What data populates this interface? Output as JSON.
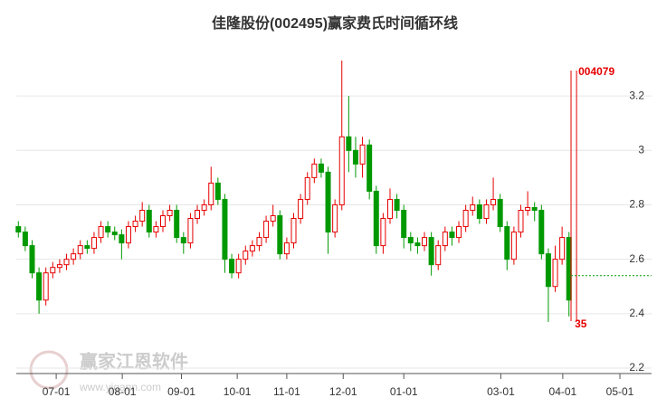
{
  "chart_data": {
    "type": "candlestick",
    "title": "佳隆股份(002495)赢家费氏时间循环线",
    "watermark": "赢家江恩软件",
    "watermark_url": "www.yjgann.com",
    "up_color": "#e60000",
    "down_color": "#009900",
    "xlim": [
      -0.3,
      92
    ],
    "xticks": [
      {
        "value": 5.5,
        "label": "07-01"
      },
      {
        "value": 15.1,
        "label": "08-01"
      },
      {
        "value": 23.7,
        "label": "09-01"
      },
      {
        "value": 31.8,
        "label": "10-01"
      },
      {
        "value": 39,
        "label": "11-01"
      },
      {
        "value": 47.2,
        "label": "12-01"
      },
      {
        "value": 56,
        "label": "01-01"
      },
      {
        "value": 70.1,
        "label": "03-01"
      },
      {
        "value": 79.1,
        "label": "04-01"
      },
      {
        "value": 87.4,
        "label": "05-01"
      }
    ],
    "ylim": [
      2.18,
      3.37
    ],
    "yticks": [
      2.2,
      2.4,
      2.6,
      2.8,
      3,
      3.2
    ],
    "grid": true,
    "series": [
      {
        "open": [
          2.72,
          2.7,
          2.65,
          2.55,
          2.45,
          2.55,
          2.57,
          2.58,
          2.6,
          2.62,
          2.65,
          2.64,
          2.68,
          2.72,
          2.7,
          2.69,
          2.66,
          2.72,
          2.74,
          2.78,
          2.7,
          2.72,
          2.76,
          2.78,
          2.68,
          2.66,
          2.75,
          2.78,
          2.8,
          2.88,
          2.82,
          2.6,
          2.55,
          2.6,
          2.63,
          2.65,
          2.68,
          2.74,
          2.76,
          2.62,
          2.66,
          2.75,
          2.82,
          2.9,
          2.95,
          2.92,
          2.7,
          2.8,
          3.05,
          3.0,
          2.95,
          3.02,
          2.85,
          2.65,
          2.75,
          2.82,
          2.78,
          2.68,
          2.66,
          2.65,
          2.68,
          2.58,
          2.65,
          2.7,
          2.68,
          2.72,
          2.78,
          2.8,
          2.75,
          2.8,
          2.82,
          2.72,
          2.6,
          2.7,
          2.78,
          2.79,
          2.78,
          2.62,
          2.5,
          2.6,
          2.68
        ],
        "high": [
          2.74,
          2.72,
          2.67,
          2.57,
          2.57,
          2.59,
          2.6,
          2.62,
          2.64,
          2.67,
          2.67,
          2.7,
          2.74,
          2.74,
          2.72,
          2.71,
          2.74,
          2.76,
          2.81,
          2.8,
          2.74,
          2.78,
          2.8,
          2.8,
          2.7,
          2.77,
          2.8,
          2.82,
          2.94,
          2.9,
          2.84,
          2.62,
          2.62,
          2.65,
          2.67,
          2.7,
          2.76,
          2.8,
          2.78,
          2.68,
          2.77,
          2.84,
          2.92,
          2.97,
          2.97,
          2.94,
          2.82,
          3.33,
          3.2,
          3.05,
          3.05,
          3.04,
          2.87,
          2.77,
          2.86,
          2.84,
          2.8,
          2.7,
          2.68,
          2.7,
          2.7,
          2.67,
          2.72,
          2.72,
          2.74,
          2.8,
          2.83,
          2.82,
          2.82,
          2.9,
          2.84,
          2.74,
          2.72,
          2.8,
          2.85,
          2.81,
          2.8,
          2.64,
          2.65,
          2.72,
          2.7
        ],
        "low": [
          2.68,
          2.63,
          2.53,
          2.4,
          2.43,
          2.53,
          2.55,
          2.56,
          2.58,
          2.6,
          2.62,
          2.62,
          2.66,
          2.68,
          2.67,
          2.6,
          2.64,
          2.7,
          2.72,
          2.68,
          2.68,
          2.7,
          2.74,
          2.66,
          2.62,
          2.64,
          2.73,
          2.76,
          2.78,
          2.8,
          2.55,
          2.53,
          2.53,
          2.58,
          2.61,
          2.63,
          2.66,
          2.72,
          2.6,
          2.6,
          2.64,
          2.73,
          2.8,
          2.88,
          2.9,
          2.62,
          2.68,
          2.78,
          2.92,
          2.9,
          2.9,
          2.82,
          2.62,
          2.62,
          2.73,
          2.75,
          2.64,
          2.63,
          2.62,
          2.63,
          2.54,
          2.56,
          2.63,
          2.65,
          2.66,
          2.7,
          2.76,
          2.73,
          2.73,
          2.78,
          2.7,
          2.56,
          2.58,
          2.68,
          2.76,
          2.74,
          2.6,
          2.37,
          2.48,
          2.58,
          2.39
        ],
        "close": [
          2.7,
          2.65,
          2.55,
          2.45,
          2.55,
          2.57,
          2.58,
          2.6,
          2.62,
          2.65,
          2.64,
          2.68,
          2.72,
          2.7,
          2.69,
          2.66,
          2.72,
          2.74,
          2.78,
          2.7,
          2.72,
          2.76,
          2.78,
          2.68,
          2.66,
          2.75,
          2.78,
          2.8,
          2.88,
          2.82,
          2.6,
          2.55,
          2.6,
          2.63,
          2.65,
          2.68,
          2.74,
          2.76,
          2.62,
          2.66,
          2.75,
          2.82,
          2.9,
          2.95,
          2.92,
          2.7,
          2.8,
          3.05,
          3.0,
          2.95,
          3.02,
          2.85,
          2.65,
          2.75,
          2.82,
          2.78,
          2.68,
          2.66,
          2.65,
          2.68,
          2.58,
          2.65,
          2.7,
          2.68,
          2.72,
          2.78,
          2.8,
          2.75,
          2.8,
          2.82,
          2.72,
          2.6,
          2.7,
          2.78,
          2.79,
          2.78,
          2.62,
          2.5,
          2.6,
          2.68,
          2.45
        ]
      }
    ],
    "cycle_lines": {
      "color": "#e60000",
      "x": [
        80.3,
        81.1
      ],
      "top_label": "004079",
      "bottom_label": "35"
    },
    "support_line": {
      "color": "#009900",
      "value": 2.54,
      "from_x": 80.3
    }
  }
}
